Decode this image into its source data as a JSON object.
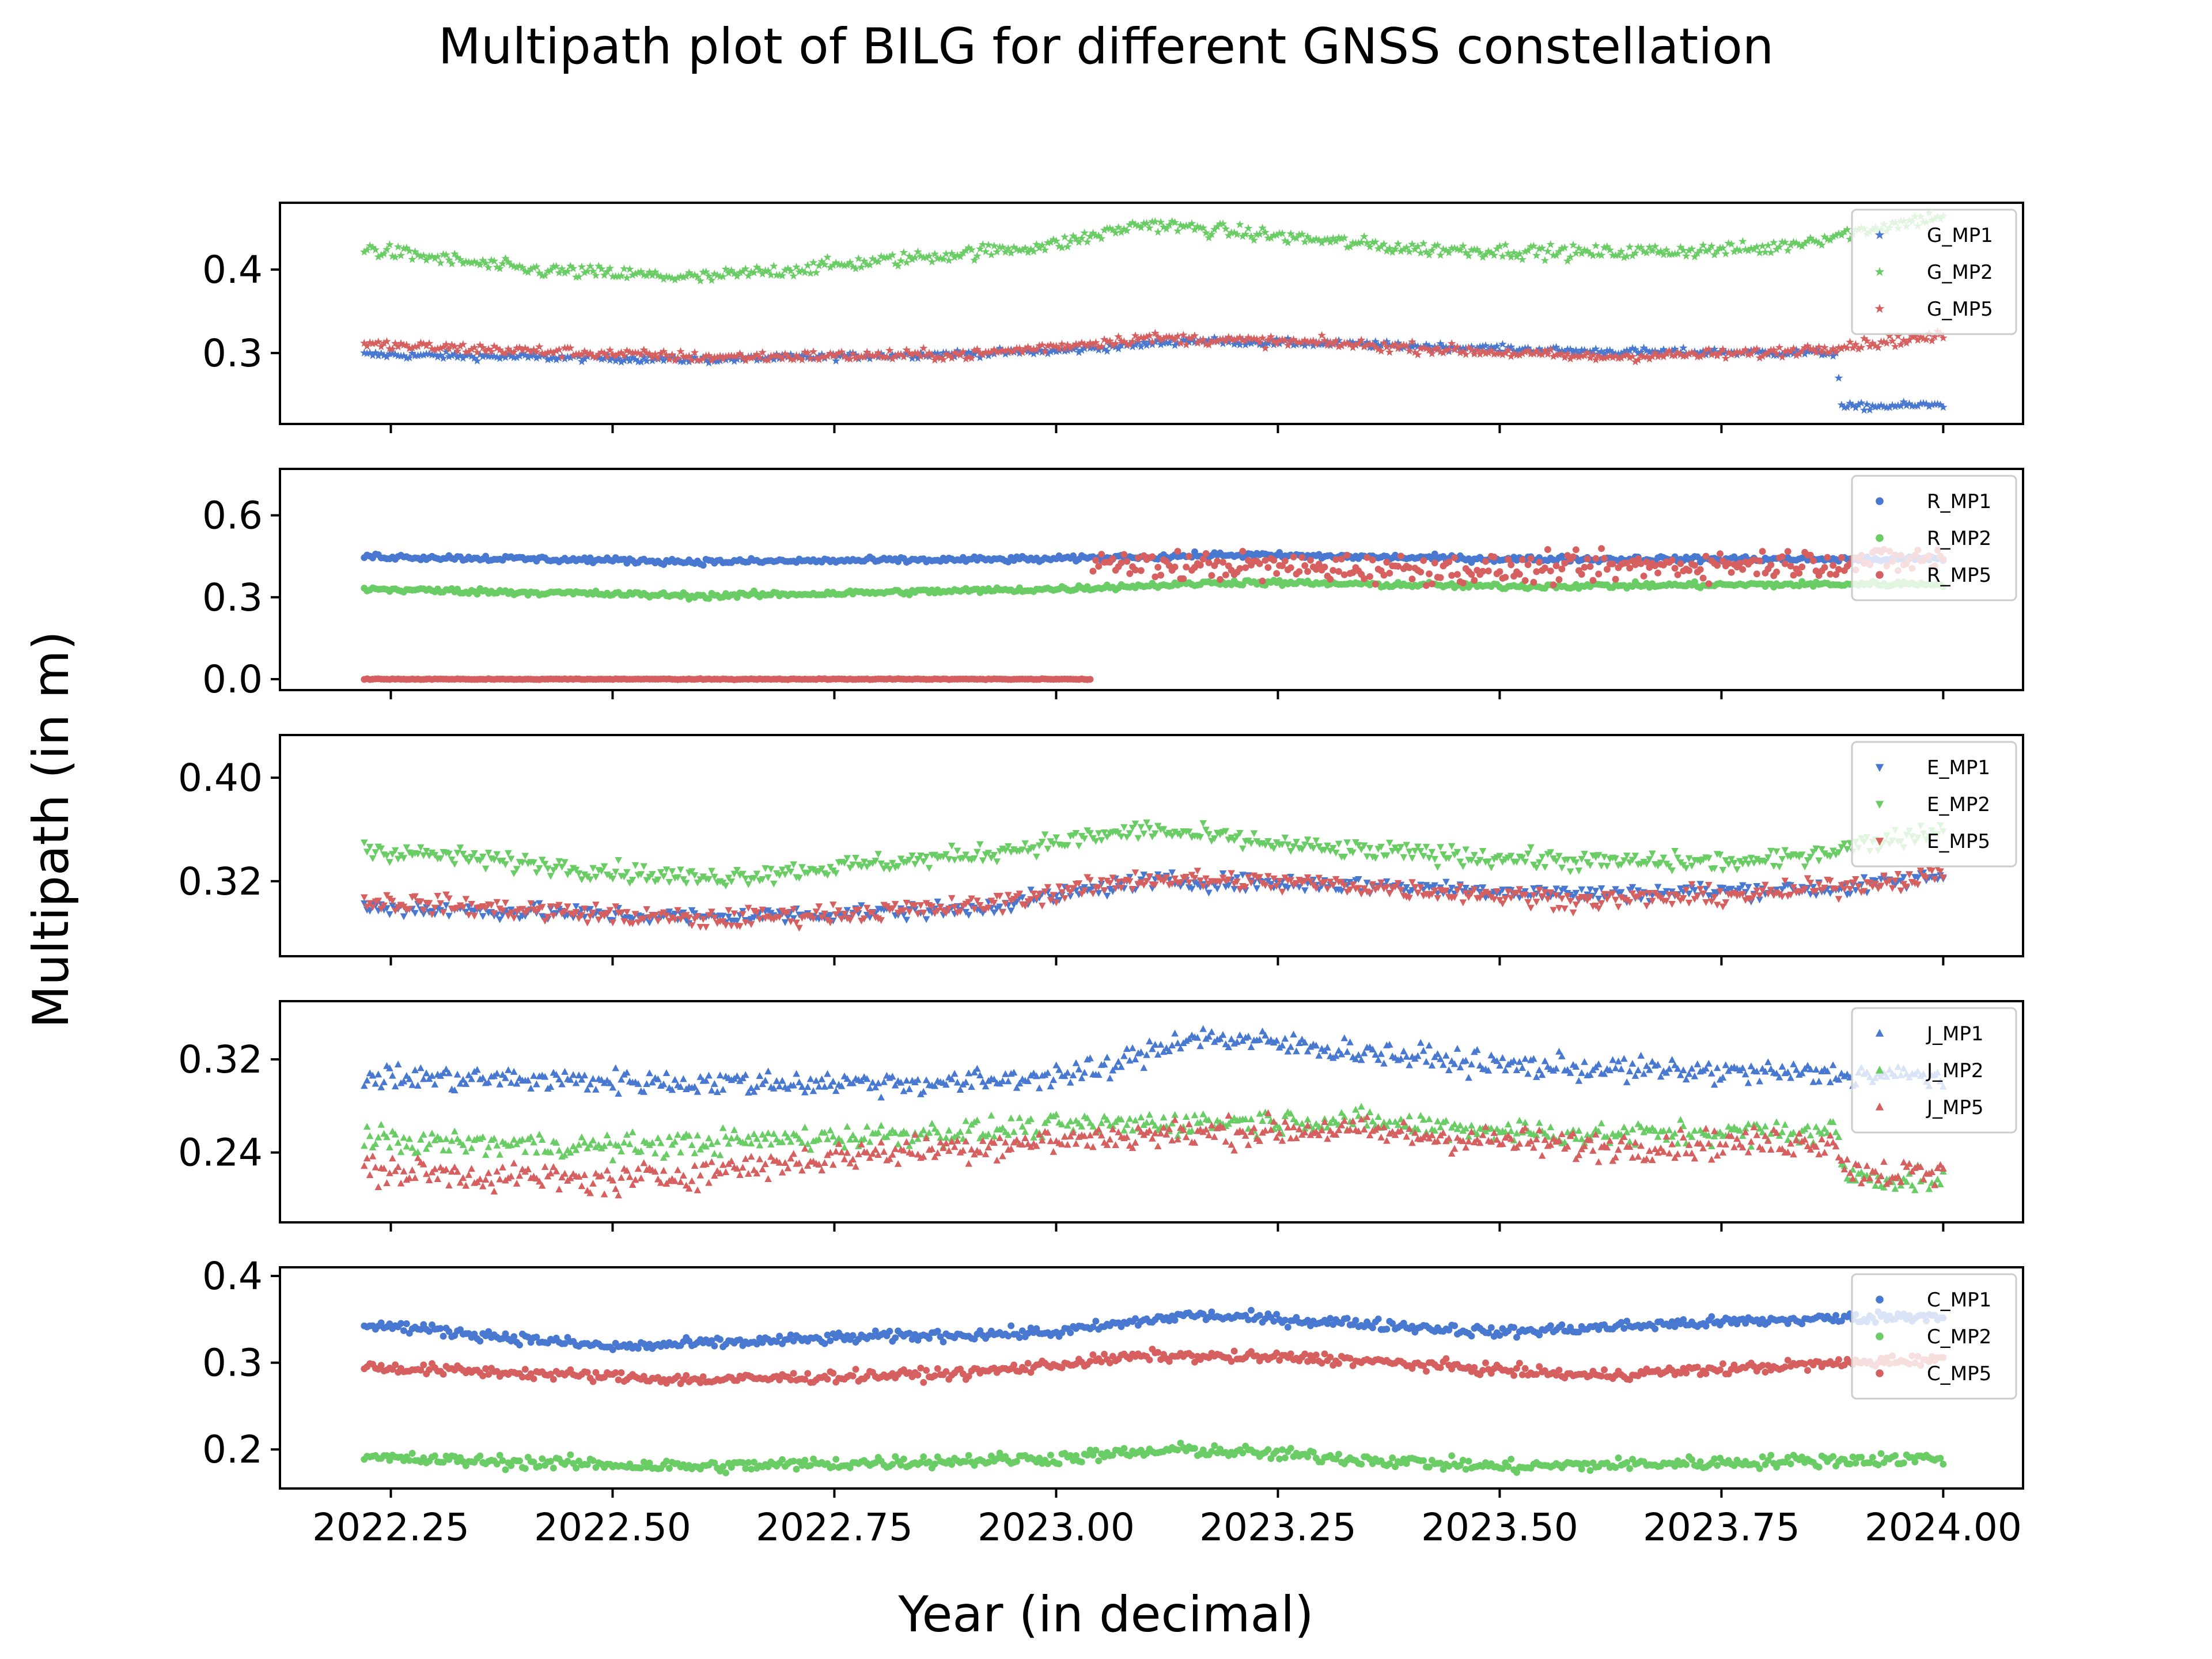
{
  "chart_data": {
    "type": "scatter",
    "title": "Multipath plot of BILG for different GNSS constellation",
    "xlabel": "Year (in decimal)",
    "ylabel": "Multipath (in m)",
    "xlim": [
      2022.125,
      2024.09
    ],
    "xticks": [
      2022.25,
      2022.5,
      2022.75,
      2023.0,
      2023.25,
      2023.5,
      2023.75,
      2024.0
    ],
    "xtick_labels": [
      "2022.25",
      "2022.50",
      "2022.75",
      "2023.00",
      "2023.25",
      "2023.50",
      "2023.75",
      "2024.00"
    ],
    "x_sampling": {
      "start": 2022.22,
      "end": 2024.0,
      "points_per_series": 560
    },
    "colors": {
      "MP1": "#4878d0",
      "MP2": "#6acc64",
      "MP5": "#d65f5f"
    },
    "legend_position": "upper right",
    "grid": false,
    "panels": [
      {
        "constellation": "G",
        "marker": "star",
        "ylim": [
          0.215,
          0.48
        ],
        "yticks": [
          0.3,
          0.4
        ],
        "ytick_labels": [
          "0.3",
          "0.4"
        ],
        "series": [
          {
            "name": "G_MP1",
            "profile": [
              [
                2022.22,
                0.298
              ],
              [
                2022.6,
                0.292
              ],
              [
                2023.0,
                0.302
              ],
              [
                2023.15,
                0.315
              ],
              [
                2023.35,
                0.31
              ],
              [
                2023.6,
                0.302
              ],
              [
                2023.88,
                0.3
              ],
              [
                2023.885,
                0.235
              ],
              [
                2024.0,
                0.238
              ]
            ],
            "noise": 0.004
          },
          {
            "name": "G_MP2",
            "profile": [
              [
                2022.22,
                0.425
              ],
              [
                2022.4,
                0.4
              ],
              [
                2022.6,
                0.39
              ],
              [
                2022.8,
                0.41
              ],
              [
                2023.0,
                0.43
              ],
              [
                2023.1,
                0.455
              ],
              [
                2023.25,
                0.44
              ],
              [
                2023.4,
                0.425
              ],
              [
                2023.6,
                0.42
              ],
              [
                2023.8,
                0.425
              ],
              [
                2024.0,
                0.465
              ]
            ],
            "noise": 0.008
          },
          {
            "name": "G_MP5",
            "profile": [
              [
                2022.22,
                0.31
              ],
              [
                2022.6,
                0.295
              ],
              [
                2022.9,
                0.298
              ],
              [
                2023.1,
                0.318
              ],
              [
                2023.3,
                0.312
              ],
              [
                2023.6,
                0.295
              ],
              [
                2023.8,
                0.3
              ],
              [
                2024.0,
                0.32
              ]
            ],
            "noise": 0.006
          }
        ]
      },
      {
        "constellation": "R",
        "marker": "circle",
        "ylim": [
          -0.04,
          0.77
        ],
        "yticks": [
          0.0,
          0.3,
          0.6
        ],
        "ytick_labels": [
          "0.0",
          "0.3",
          "0.6"
        ],
        "series": [
          {
            "name": "R_MP1",
            "profile": [
              [
                2022.22,
                0.45
              ],
              [
                2022.6,
                0.43
              ],
              [
                2023.0,
                0.44
              ],
              [
                2023.2,
                0.455
              ],
              [
                2023.5,
                0.44
              ],
              [
                2024.0,
                0.44
              ]
            ],
            "noise": 0.01
          },
          {
            "name": "R_MP2",
            "profile": [
              [
                2022.22,
                0.33
              ],
              [
                2022.6,
                0.305
              ],
              [
                2023.0,
                0.33
              ],
              [
                2023.2,
                0.355
              ],
              [
                2023.5,
                0.34
              ],
              [
                2024.0,
                0.35
              ]
            ],
            "noise": 0.01
          },
          {
            "name": "R_MP5",
            "profile": [
              [
                2022.22,
                0.0
              ],
              [
                2023.04,
                0.0
              ],
              [
                2023.041,
                0.42
              ],
              [
                2023.5,
                0.4
              ],
              [
                2024.0,
                0.44
              ]
            ],
            "noise": 0.05
          }
        ]
      },
      {
        "constellation": "E",
        "marker": "triangle-down",
        "ylim": [
          0.262,
          0.433
        ],
        "yticks": [
          0.32,
          0.4
        ],
        "ytick_labels": [
          "0.32",
          "0.40"
        ],
        "series": [
          {
            "name": "E_MP1",
            "profile": [
              [
                2022.22,
                0.3
              ],
              [
                2022.6,
                0.292
              ],
              [
                2022.9,
                0.298
              ],
              [
                2023.1,
                0.32
              ],
              [
                2023.3,
                0.318
              ],
              [
                2023.6,
                0.31
              ],
              [
                2023.9,
                0.315
              ],
              [
                2024.0,
                0.325
              ]
            ],
            "noise": 0.006
          },
          {
            "name": "E_MP2",
            "profile": [
              [
                2022.22,
                0.345
              ],
              [
                2022.6,
                0.322
              ],
              [
                2022.9,
                0.34
              ],
              [
                2023.1,
                0.36
              ],
              [
                2023.3,
                0.345
              ],
              [
                2023.6,
                0.335
              ],
              [
                2023.8,
                0.335
              ],
              [
                2024.0,
                0.36
              ]
            ],
            "noise": 0.007
          },
          {
            "name": "E_MP5",
            "profile": [
              [
                2022.22,
                0.305
              ],
              [
                2022.6,
                0.29
              ],
              [
                2022.9,
                0.3
              ],
              [
                2023.1,
                0.322
              ],
              [
                2023.3,
                0.318
              ],
              [
                2023.6,
                0.305
              ],
              [
                2023.8,
                0.31
              ],
              [
                2024.0,
                0.325
              ]
            ],
            "noise": 0.007
          }
        ]
      },
      {
        "constellation": "J",
        "marker": "triangle-up",
        "ylim": [
          0.18,
          0.37
        ],
        "yticks": [
          0.24,
          0.32
        ],
        "ytick_labels": [
          "0.24",
          "0.32"
        ],
        "series": [
          {
            "name": "J_MP1",
            "profile": [
              [
                2022.22,
                0.305
              ],
              [
                2022.6,
                0.3
              ],
              [
                2022.9,
                0.3
              ],
              [
                2023.05,
                0.31
              ],
              [
                2023.15,
                0.34
              ],
              [
                2023.3,
                0.33
              ],
              [
                2023.5,
                0.315
              ],
              [
                2023.7,
                0.31
              ],
              [
                2024.0,
                0.305
              ]
            ],
            "noise": 0.01
          },
          {
            "name": "J_MP2",
            "profile": [
              [
                2022.22,
                0.25
              ],
              [
                2022.5,
                0.245
              ],
              [
                2022.8,
                0.255
              ],
              [
                2023.1,
                0.265
              ],
              [
                2023.3,
                0.268
              ],
              [
                2023.6,
                0.255
              ],
              [
                2023.88,
                0.258
              ],
              [
                2023.89,
                0.22
              ],
              [
                2024.0,
                0.215
              ]
            ],
            "noise": 0.01
          },
          {
            "name": "J_MP5",
            "profile": [
              [
                2022.22,
                0.225
              ],
              [
                2022.5,
                0.215
              ],
              [
                2022.8,
                0.24
              ],
              [
                2023.1,
                0.255
              ],
              [
                2023.3,
                0.26
              ],
              [
                2023.6,
                0.245
              ],
              [
                2023.88,
                0.25
              ],
              [
                2023.89,
                0.225
              ],
              [
                2024.0,
                0.22
              ]
            ],
            "noise": 0.012
          }
        ]
      },
      {
        "constellation": "C",
        "marker": "circle",
        "ylim": [
          0.155,
          0.41
        ],
        "yticks": [
          0.2,
          0.3,
          0.4
        ],
        "ytick_labels": [
          "0.2",
          "0.3",
          "0.4"
        ],
        "series": [
          {
            "name": "C_MP1",
            "profile": [
              [
                2022.22,
                0.345
              ],
              [
                2022.5,
                0.318
              ],
              [
                2022.8,
                0.33
              ],
              [
                2023.0,
                0.335
              ],
              [
                2023.15,
                0.355
              ],
              [
                2023.35,
                0.345
              ],
              [
                2023.5,
                0.335
              ],
              [
                2023.7,
                0.345
              ],
              [
                2024.0,
                0.355
              ]
            ],
            "noise": 0.006
          },
          {
            "name": "C_MP2",
            "profile": [
              [
                2022.22,
                0.19
              ],
              [
                2022.6,
                0.18
              ],
              [
                2023.0,
                0.19
              ],
              [
                2023.15,
                0.2
              ],
              [
                2023.5,
                0.18
              ],
              [
                2024.0,
                0.19
              ]
            ],
            "noise": 0.007
          },
          {
            "name": "C_MP5",
            "profile": [
              [
                2022.22,
                0.295
              ],
              [
                2022.6,
                0.28
              ],
              [
                2022.9,
                0.288
              ],
              [
                2023.1,
                0.308
              ],
              [
                2023.3,
                0.305
              ],
              [
                2023.6,
                0.285
              ],
              [
                2024.0,
                0.305
              ]
            ],
            "noise": 0.006
          }
        ]
      }
    ]
  }
}
